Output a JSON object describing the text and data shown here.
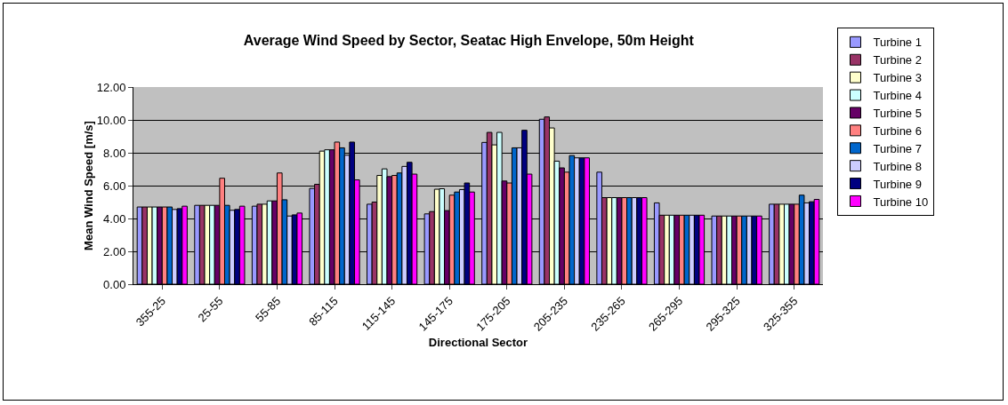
{
  "chart_data": {
    "type": "bar",
    "title": "Average Wind Speed by Sector, Seatac High Envelope, 50m Height",
    "xlabel": "Directional Sector",
    "ylabel": "Mean Wind Speed [m/s]",
    "categories": [
      "355-25",
      "25-55",
      "55-85",
      "85-115",
      "115-145",
      "145-175",
      "175-205",
      "205-235",
      "235-265",
      "265-295",
      "295-325",
      "325-355"
    ],
    "series": [
      {
        "name": "Turbine 1",
        "color": "#9999ff",
        "values": [
          4.7,
          4.8,
          4.75,
          5.83,
          4.87,
          4.28,
          8.63,
          10.04,
          6.82,
          4.95,
          4.15,
          4.87
        ]
      },
      {
        "name": "Turbine 2",
        "color": "#993366",
        "values": [
          4.7,
          4.8,
          4.87,
          6.08,
          5.0,
          4.42,
          9.24,
          10.18,
          5.27,
          4.2,
          4.15,
          4.87
        ]
      },
      {
        "name": "Turbine 3",
        "color": "#ffffcc",
        "values": [
          4.7,
          4.8,
          4.87,
          8.1,
          6.62,
          5.78,
          8.48,
          9.51,
          5.27,
          4.2,
          4.15,
          4.87
        ]
      },
      {
        "name": "Turbine 4",
        "color": "#ccffff",
        "values": [
          4.7,
          4.8,
          5.07,
          8.18,
          7.02,
          5.81,
          9.24,
          7.49,
          5.27,
          4.2,
          4.15,
          4.87
        ]
      },
      {
        "name": "Turbine 5",
        "color": "#660066",
        "values": [
          4.7,
          4.8,
          5.07,
          8.18,
          6.55,
          4.48,
          6.28,
          7.08,
          5.27,
          4.2,
          4.15,
          4.87
        ]
      },
      {
        "name": "Turbine 6",
        "color": "#ff8080",
        "values": [
          4.7,
          6.45,
          6.77,
          8.65,
          6.62,
          5.42,
          6.16,
          6.82,
          5.27,
          4.2,
          4.15,
          4.87
        ]
      },
      {
        "name": "Turbine 7",
        "color": "#0066cc",
        "values": [
          4.7,
          4.8,
          5.14,
          8.3,
          6.77,
          5.61,
          8.3,
          7.83,
          5.27,
          4.2,
          4.15,
          5.42
        ]
      },
      {
        "name": "Turbine 8",
        "color": "#ccccff",
        "values": [
          4.55,
          4.5,
          4.15,
          7.85,
          7.17,
          5.76,
          8.3,
          7.69,
          5.27,
          4.2,
          4.15,
          4.95
        ]
      },
      {
        "name": "Turbine 9",
        "color": "#000080",
        "values": [
          4.6,
          4.55,
          4.22,
          8.65,
          7.42,
          6.16,
          9.37,
          7.69,
          5.27,
          4.2,
          4.15,
          5.02
        ]
      },
      {
        "name": "Turbine 10",
        "color": "#ff00ff",
        "values": [
          4.75,
          4.75,
          4.33,
          6.35,
          6.7,
          5.61,
          6.7,
          7.69,
          5.27,
          4.2,
          4.15,
          5.16
        ]
      }
    ],
    "ylim": [
      0,
      12
    ],
    "yticks": [
      {
        "value": 0,
        "label": "0.00"
      },
      {
        "value": 2,
        "label": "2.00"
      },
      {
        "value": 4,
        "label": "4.00"
      },
      {
        "value": 6,
        "label": "6.00"
      },
      {
        "value": 8,
        "label": "8.00"
      },
      {
        "value": 10,
        "label": "10.00"
      },
      {
        "value": 12,
        "label": "12.00"
      }
    ],
    "grid": "y",
    "legend": "right"
  }
}
